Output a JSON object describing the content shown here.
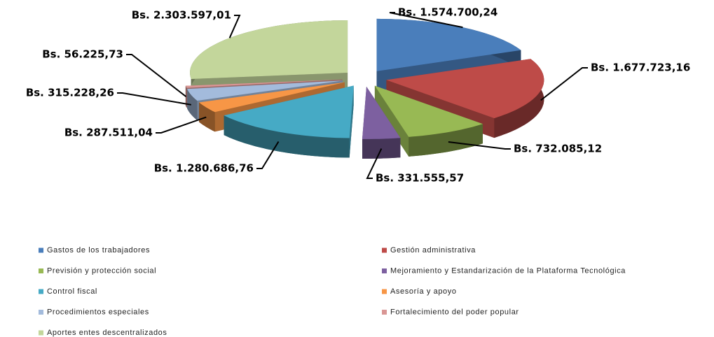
{
  "chart_data": {
    "type": "pie",
    "categories": [
      "Gastos de los trabajadores",
      "Gestión administrativa",
      "Previsión y protección social",
      "Mejoramiento y Estandarización de la Plataforma Tecnológica",
      "Control fiscal",
      "Asesoría y apoyo",
      "Procedimientos especiales",
      "Fortalecimiento del poder popular",
      "Aportes entes descentralizados"
    ],
    "values": [
      1574700.24,
      1677723.16,
      732085.12,
      331555.57,
      1280686.76,
      287511.04,
      315228.26,
      56225.73,
      2303597.01
    ],
    "value_labels": [
      "Bs. 1.574.700,24",
      "Bs. 1.677.723,16",
      "Bs. 732.085,12",
      "Bs. 331.555,57",
      "Bs. 1.280.686,76",
      "Bs. 287.511,04",
      "Bs. 315.228,26",
      "Bs. 56.225,73",
      "Bs. 2.303.597,01"
    ],
    "colors": [
      "#4a7ebb",
      "#be4b48",
      "#98b954",
      "#7d60a0",
      "#46aac5",
      "#f79646",
      "#a3bbdc",
      "#d99694",
      "#c3d69b"
    ],
    "legend": "bottom"
  }
}
